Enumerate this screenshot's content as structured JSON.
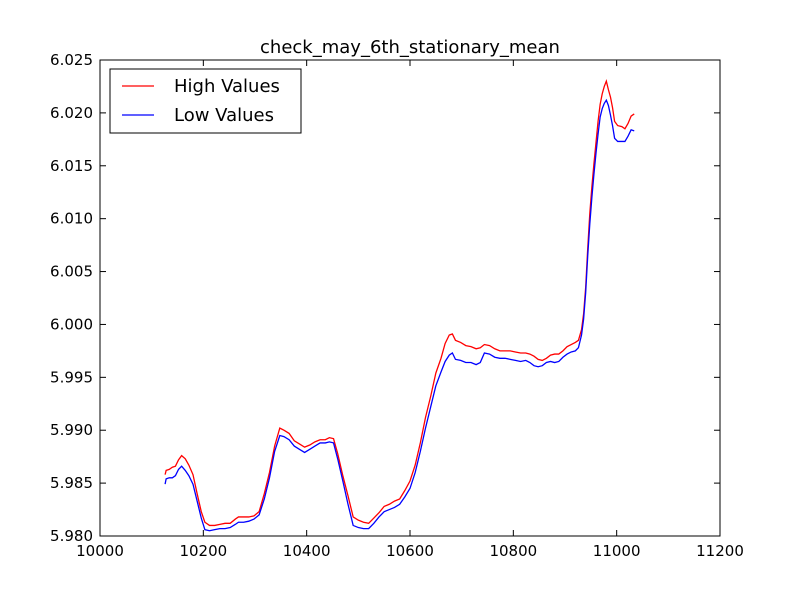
{
  "chart_data": {
    "type": "line",
    "title": "check_may_6th_stationary_mean",
    "xlabel": "",
    "ylabel": "",
    "xlim": [
      10000,
      11200
    ],
    "ylim": [
      5.98,
      6.025
    ],
    "x_ticks": [
      {
        "value": 10000,
        "label": "10000"
      },
      {
        "value": 10200,
        "label": "10200"
      },
      {
        "value": 10400,
        "label": "10400"
      },
      {
        "value": 10600,
        "label": "10600"
      },
      {
        "value": 10800,
        "label": "10800"
      },
      {
        "value": 11000,
        "label": "11000"
      },
      {
        "value": 11200,
        "label": "11200"
      }
    ],
    "y_ticks": [
      {
        "value": 5.98,
        "label": "5.980"
      },
      {
        "value": 5.985,
        "label": "5.985"
      },
      {
        "value": 5.99,
        "label": "5.990"
      },
      {
        "value": 5.995,
        "label": "5.995"
      },
      {
        "value": 6.0,
        "label": "6.000"
      },
      {
        "value": 6.005,
        "label": "6.005"
      },
      {
        "value": 6.01,
        "label": "6.010"
      },
      {
        "value": 6.015,
        "label": "6.015"
      },
      {
        "value": 6.02,
        "label": "6.020"
      },
      {
        "value": 6.025,
        "label": "6.025"
      }
    ],
    "grid": false,
    "legend_position": "upper-left",
    "series": [
      {
        "name": "High Values",
        "color": "#ff0000",
        "points": [
          [
            10126,
            5.9858
          ],
          [
            10128,
            5.9862
          ],
          [
            10134,
            5.9863
          ],
          [
            10140,
            5.9865
          ],
          [
            10146,
            5.9866
          ],
          [
            10152,
            5.9872
          ],
          [
            10158,
            5.9876
          ],
          [
            10165,
            5.9873
          ],
          [
            10172,
            5.9867
          ],
          [
            10180,
            5.9858
          ],
          [
            10188,
            5.984
          ],
          [
            10196,
            5.9823
          ],
          [
            10203,
            5.9813
          ],
          [
            10212,
            5.981
          ],
          [
            10222,
            5.981
          ],
          [
            10232,
            5.9811
          ],
          [
            10242,
            5.9812
          ],
          [
            10252,
            5.9812
          ],
          [
            10262,
            5.9816
          ],
          [
            10268,
            5.9818
          ],
          [
            10278,
            5.9818
          ],
          [
            10288,
            5.9818
          ],
          [
            10298,
            5.9819
          ],
          [
            10308,
            5.9823
          ],
          [
            10318,
            5.984
          ],
          [
            10328,
            5.986
          ],
          [
            10338,
            5.9885
          ],
          [
            10348,
            5.9902
          ],
          [
            10356,
            5.99
          ],
          [
            10366,
            5.9897
          ],
          [
            10376,
            5.989
          ],
          [
            10386,
            5.9887
          ],
          [
            10396,
            5.9884
          ],
          [
            10406,
            5.9886
          ],
          [
            10416,
            5.9889
          ],
          [
            10426,
            5.9891
          ],
          [
            10436,
            5.9891
          ],
          [
            10444,
            5.9893
          ],
          [
            10452,
            5.9892
          ],
          [
            10460,
            5.9878
          ],
          [
            10470,
            5.9857
          ],
          [
            10480,
            5.9838
          ],
          [
            10490,
            5.9818
          ],
          [
            10500,
            5.9815
          ],
          [
            10510,
            5.9813
          ],
          [
            10520,
            5.9812
          ],
          [
            10530,
            5.9817
          ],
          [
            10540,
            5.9822
          ],
          [
            10550,
            5.9828
          ],
          [
            10560,
            5.983
          ],
          [
            10570,
            5.9833
          ],
          [
            10580,
            5.9835
          ],
          [
            10590,
            5.9843
          ],
          [
            10600,
            5.9852
          ],
          [
            10610,
            5.9867
          ],
          [
            10620,
            5.9888
          ],
          [
            10630,
            5.9912
          ],
          [
            10640,
            5.9932
          ],
          [
            10650,
            5.9954
          ],
          [
            10660,
            5.9968
          ],
          [
            10668,
            5.9982
          ],
          [
            10676,
            5.999
          ],
          [
            10682,
            5.9991
          ],
          [
            10688,
            5.9985
          ],
          [
            10698,
            5.9983
          ],
          [
            10708,
            5.998
          ],
          [
            10718,
            5.9979
          ],
          [
            10728,
            5.9977
          ],
          [
            10736,
            5.9978
          ],
          [
            10744,
            5.9981
          ],
          [
            10754,
            5.998
          ],
          [
            10764,
            5.9977
          ],
          [
            10774,
            5.9975
          ],
          [
            10784,
            5.9975
          ],
          [
            10794,
            5.9975
          ],
          [
            10804,
            5.9974
          ],
          [
            10814,
            5.9973
          ],
          [
            10824,
            5.9973
          ],
          [
            10832,
            5.9972
          ],
          [
            10840,
            5.997
          ],
          [
            10848,
            5.9967
          ],
          [
            10856,
            5.9966
          ],
          [
            10864,
            5.9968
          ],
          [
            10872,
            5.9971
          ],
          [
            10880,
            5.9972
          ],
          [
            10888,
            5.9972
          ],
          [
            10896,
            5.9975
          ],
          [
            10904,
            5.9979
          ],
          [
            10912,
            5.9981
          ],
          [
            10920,
            5.9983
          ],
          [
            10926,
            5.9985
          ],
          [
            10932,
            5.9995
          ],
          [
            10936,
            6.001
          ],
          [
            10940,
            6.0035
          ],
          [
            10944,
            6.0072
          ],
          [
            10948,
            6.0105
          ],
          [
            10952,
            6.013
          ],
          [
            10956,
            6.0152
          ],
          [
            10960,
            6.0172
          ],
          [
            10964,
            6.0192
          ],
          [
            10968,
            6.0208
          ],
          [
            10972,
            6.0218
          ],
          [
            10976,
            6.0225
          ],
          [
            10980,
            6.023
          ],
          [
            10984,
            6.0222
          ],
          [
            10988,
            6.0215
          ],
          [
            10992,
            6.0205
          ],
          [
            10996,
            6.0192
          ],
          [
            11002,
            6.0188
          ],
          [
            11010,
            6.0187
          ],
          [
            11016,
            6.0185
          ],
          [
            11022,
            6.019
          ],
          [
            11028,
            6.0197
          ],
          [
            11034,
            6.0199
          ]
        ]
      },
      {
        "name": "Low Values",
        "color": "#0000ff",
        "points": [
          [
            10126,
            5.9849
          ],
          [
            10128,
            5.9854
          ],
          [
            10134,
            5.9855
          ],
          [
            10140,
            5.9855
          ],
          [
            10146,
            5.9857
          ],
          [
            10152,
            5.9863
          ],
          [
            10158,
            5.9866
          ],
          [
            10165,
            5.9862
          ],
          [
            10172,
            5.9857
          ],
          [
            10180,
            5.9849
          ],
          [
            10188,
            5.9833
          ],
          [
            10196,
            5.9817
          ],
          [
            10203,
            5.9806
          ],
          [
            10212,
            5.9805
          ],
          [
            10222,
            5.9806
          ],
          [
            10232,
            5.9807
          ],
          [
            10242,
            5.9807
          ],
          [
            10252,
            5.9808
          ],
          [
            10262,
            5.9811
          ],
          [
            10268,
            5.9813
          ],
          [
            10278,
            5.9813
          ],
          [
            10288,
            5.9814
          ],
          [
            10298,
            5.9816
          ],
          [
            10308,
            5.982
          ],
          [
            10318,
            5.9835
          ],
          [
            10328,
            5.9855
          ],
          [
            10338,
            5.988
          ],
          [
            10348,
            5.9895
          ],
          [
            10356,
            5.9894
          ],
          [
            10366,
            5.9891
          ],
          [
            10376,
            5.9885
          ],
          [
            10386,
            5.9882
          ],
          [
            10396,
            5.9879
          ],
          [
            10406,
            5.9882
          ],
          [
            10416,
            5.9885
          ],
          [
            10426,
            5.9888
          ],
          [
            10436,
            5.9888
          ],
          [
            10444,
            5.9889
          ],
          [
            10452,
            5.9888
          ],
          [
            10460,
            5.9873
          ],
          [
            10470,
            5.9852
          ],
          [
            10480,
            5.983
          ],
          [
            10490,
            5.981
          ],
          [
            10500,
            5.9808
          ],
          [
            10510,
            5.9807
          ],
          [
            10520,
            5.9807
          ],
          [
            10530,
            5.9812
          ],
          [
            10540,
            5.9818
          ],
          [
            10550,
            5.9823
          ],
          [
            10560,
            5.9825
          ],
          [
            10570,
            5.9827
          ],
          [
            10580,
            5.983
          ],
          [
            10590,
            5.9837
          ],
          [
            10600,
            5.9845
          ],
          [
            10610,
            5.986
          ],
          [
            10620,
            5.988
          ],
          [
            10630,
            5.9902
          ],
          [
            10640,
            5.9922
          ],
          [
            10650,
            5.9942
          ],
          [
            10660,
            5.9955
          ],
          [
            10668,
            5.9965
          ],
          [
            10676,
            5.9971
          ],
          [
            10682,
            5.9973
          ],
          [
            10688,
            5.9967
          ],
          [
            10698,
            5.9966
          ],
          [
            10708,
            5.9964
          ],
          [
            10718,
            5.9964
          ],
          [
            10728,
            5.9962
          ],
          [
            10736,
            5.9964
          ],
          [
            10744,
            5.9973
          ],
          [
            10754,
            5.9972
          ],
          [
            10764,
            5.9969
          ],
          [
            10774,
            5.9968
          ],
          [
            10784,
            5.9968
          ],
          [
            10794,
            5.9967
          ],
          [
            10804,
            5.9966
          ],
          [
            10814,
            5.9965
          ],
          [
            10824,
            5.9966
          ],
          [
            10832,
            5.9964
          ],
          [
            10840,
            5.9961
          ],
          [
            10848,
            5.996
          ],
          [
            10856,
            5.9961
          ],
          [
            10864,
            5.9964
          ],
          [
            10872,
            5.9965
          ],
          [
            10880,
            5.9964
          ],
          [
            10888,
            5.9965
          ],
          [
            10896,
            5.9969
          ],
          [
            10904,
            5.9972
          ],
          [
            10912,
            5.9974
          ],
          [
            10920,
            5.9975
          ],
          [
            10926,
            5.9978
          ],
          [
            10932,
            5.999
          ],
          [
            10936,
            6.0005
          ],
          [
            10940,
            6.003
          ],
          [
            10944,
            6.0065
          ],
          [
            10948,
            6.0095
          ],
          [
            10952,
            6.012
          ],
          [
            10956,
            6.0142
          ],
          [
            10960,
            6.0162
          ],
          [
            10964,
            6.018
          ],
          [
            10968,
            6.0196
          ],
          [
            10972,
            6.0204
          ],
          [
            10976,
            6.0209
          ],
          [
            10980,
            6.0212
          ],
          [
            10984,
            6.0207
          ],
          [
            10988,
            6.0198
          ],
          [
            10992,
            6.0188
          ],
          [
            10996,
            6.0176
          ],
          [
            11002,
            6.0173
          ],
          [
            11010,
            6.0173
          ],
          [
            11016,
            6.0173
          ],
          [
            11022,
            6.0178
          ],
          [
            11028,
            6.0184
          ],
          [
            11034,
            6.0183
          ]
        ]
      }
    ]
  }
}
